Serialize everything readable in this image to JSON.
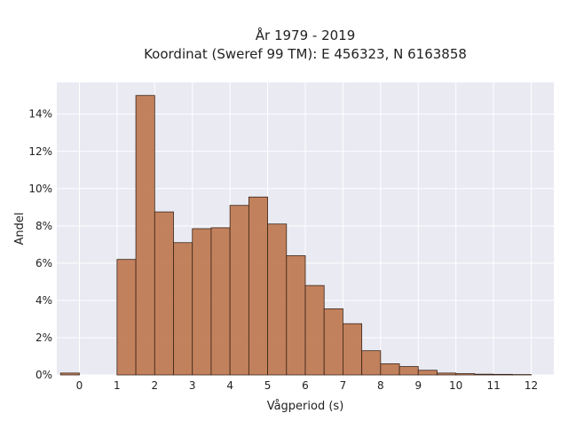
{
  "chart_data": {
    "type": "bar",
    "title_line1": "År 1979 - 2019",
    "title_line2": "Koordinat (Sweref 99 TM): E 456323, N 6163858",
    "xlabel": "Vågperiod (s)",
    "ylabel": "Andel",
    "xlim": [
      -0.6,
      12.6
    ],
    "ylim": [
      0,
      15.7
    ],
    "x_ticks": [
      0,
      1,
      2,
      3,
      4,
      5,
      6,
      7,
      8,
      9,
      10,
      11,
      12
    ],
    "x_tick_labels": [
      "0",
      "1",
      "2",
      "3",
      "4",
      "5",
      "6",
      "7",
      "8",
      "9",
      "10",
      "11",
      "12"
    ],
    "y_ticks": [
      0,
      2,
      4,
      6,
      8,
      10,
      12,
      14
    ],
    "y_tick_labels": [
      "0%",
      "2%",
      "4%",
      "6%",
      "8%",
      "10%",
      "12%",
      "14%"
    ],
    "bin_width": 0.5,
    "bin_starts": [
      -0.5,
      1.0,
      1.5,
      2.0,
      2.5,
      3.0,
      3.5,
      4.0,
      4.5,
      5.0,
      5.5,
      6.0,
      6.5,
      7.0,
      7.5,
      8.0,
      8.5,
      9.0,
      9.5,
      10.0,
      10.5,
      11.0,
      11.5
    ],
    "values": [
      0.1,
      6.2,
      15.0,
      8.75,
      7.1,
      7.85,
      7.9,
      9.1,
      9.55,
      8.1,
      6.4,
      4.8,
      3.55,
      2.75,
      1.3,
      0.6,
      0.45,
      0.25,
      0.1,
      0.07,
      0.04,
      0.03,
      0.02
    ],
    "grid": true,
    "colors": {
      "bar_fill": "#c07b54",
      "bar_edge": "#3a2418",
      "plot_bg": "#e9eaf2",
      "grid": "#ffffff"
    }
  }
}
